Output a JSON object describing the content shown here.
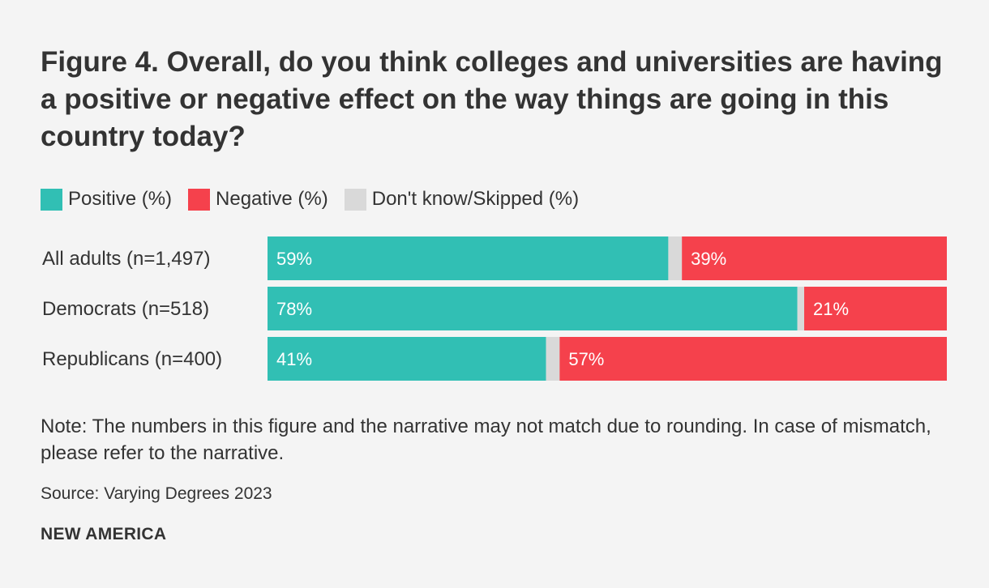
{
  "chart_data": {
    "type": "bar",
    "stacked": true,
    "orientation": "horizontal",
    "title": "Figure 4. Overall, do you think colleges and universities are having a positive or negative effect on the way things are going in this country today?",
    "categories": [
      "All adults (n=1,497)",
      "Democrats (n=518)",
      "Republicans (n=400)"
    ],
    "series": [
      {
        "name": "Positive (%)",
        "color": "#31bfb4",
        "values": [
          59,
          78,
          41
        ],
        "labels": [
          "59%",
          "78%",
          "41%"
        ]
      },
      {
        "name": "Don't know/Skipped (%)",
        "color": "#d9d9d9",
        "values": [
          2,
          1,
          2
        ],
        "labels": [
          "",
          "",
          ""
        ]
      },
      {
        "name": "Negative (%)",
        "color": "#f5414c",
        "values": [
          39,
          21,
          57
        ],
        "labels": [
          "39%",
          "21%",
          "57%"
        ]
      }
    ],
    "legend_order": [
      "Positive (%)",
      "Negative (%)",
      "Don't know/Skipped (%)"
    ],
    "xlim": [
      0,
      100
    ],
    "legend_position": "top-left"
  },
  "note": "Note: The numbers in this figure and the narrative may not match due to rounding. In case of mismatch, please refer to the narrative.",
  "source": "Source: Varying Degrees 2023",
  "brand": "NEW AMERICA"
}
